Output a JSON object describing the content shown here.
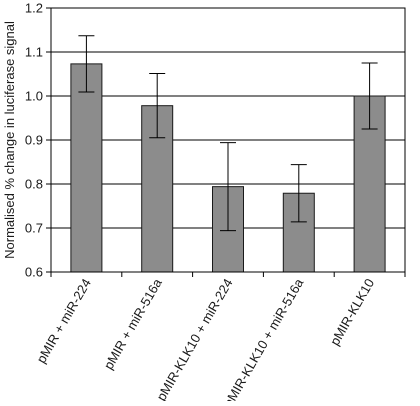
{
  "chart_data": {
    "type": "bar",
    "title": "",
    "xlabel": "",
    "ylabel": "Normalised % change in luciferase signal",
    "ylim": [
      0.6,
      1.2
    ],
    "yticks": [
      "0.6",
      "0.7",
      "0.8",
      "0.9",
      "1.0",
      "1.1",
      "1.2"
    ],
    "grid": true,
    "categories": [
      "pMIR + miR-224",
      "pMIR + miR-516a",
      "pMIR-KLK10 + miR-224",
      "pMIR-KLK10 + miR-516a",
      "pMIR-KLK10"
    ],
    "values": [
      1.073,
      0.978,
      0.794,
      0.779,
      1.0
    ],
    "errors": [
      0.064,
      0.073,
      0.1,
      0.065,
      0.075
    ],
    "colors": {
      "bar_fill": "#8c8c8c",
      "bar_stroke": "#1a1a1a",
      "grid": "#000000",
      "axis": "#000000"
    }
  }
}
